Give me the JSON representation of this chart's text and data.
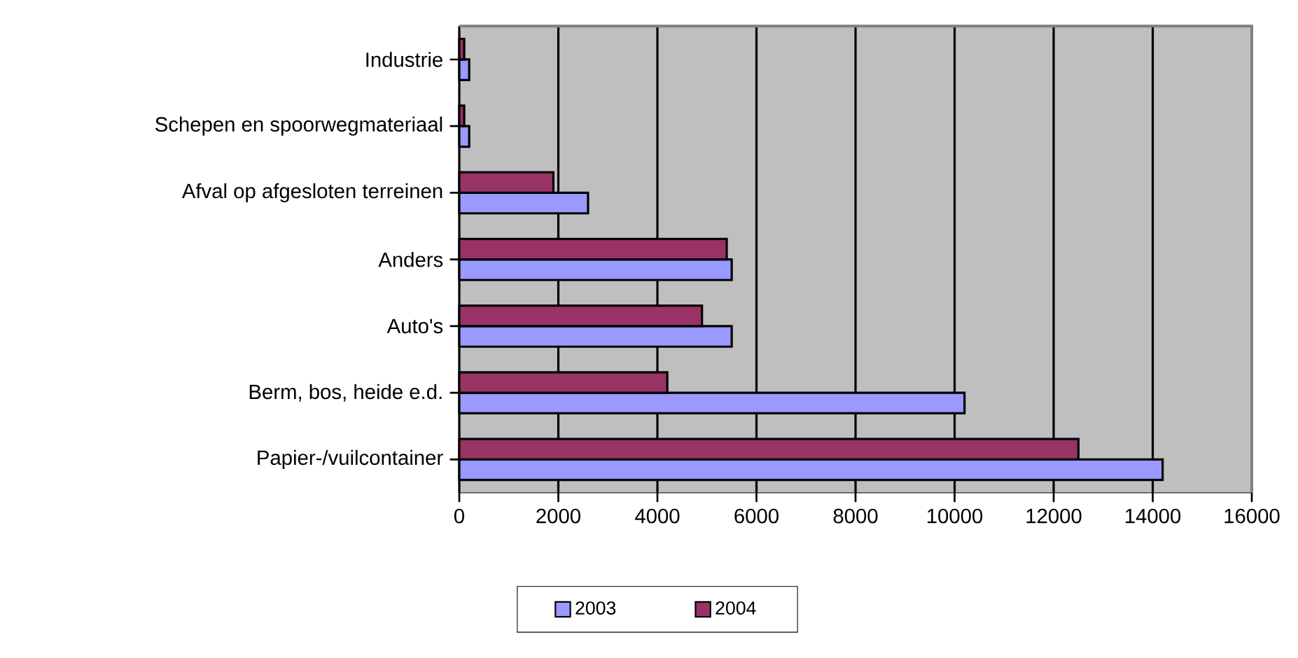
{
  "chart_data": {
    "type": "bar",
    "orientation": "horizontal",
    "categories": [
      "Industrie",
      "Schepen en spoorwegmateriaal",
      "Afval op afgesloten terreinen",
      "Anders",
      "Auto's",
      "Berm, bos, heide e.d.",
      "Papier-/vuilcontainer"
    ],
    "series": [
      {
        "name": "2003",
        "color": "#9999ff",
        "values": [
          200,
          200,
          2600,
          5500,
          5500,
          10200,
          14200
        ]
      },
      {
        "name": "2004",
        "color": "#993366",
        "values": [
          100,
          100,
          1900,
          5400,
          4900,
          4200,
          12500
        ]
      }
    ],
    "xlim": [
      0,
      16000
    ],
    "xticks": [
      0,
      2000,
      4000,
      6000,
      8000,
      10000,
      12000,
      14000,
      16000
    ],
    "grid": "x",
    "legend": "bottom"
  }
}
